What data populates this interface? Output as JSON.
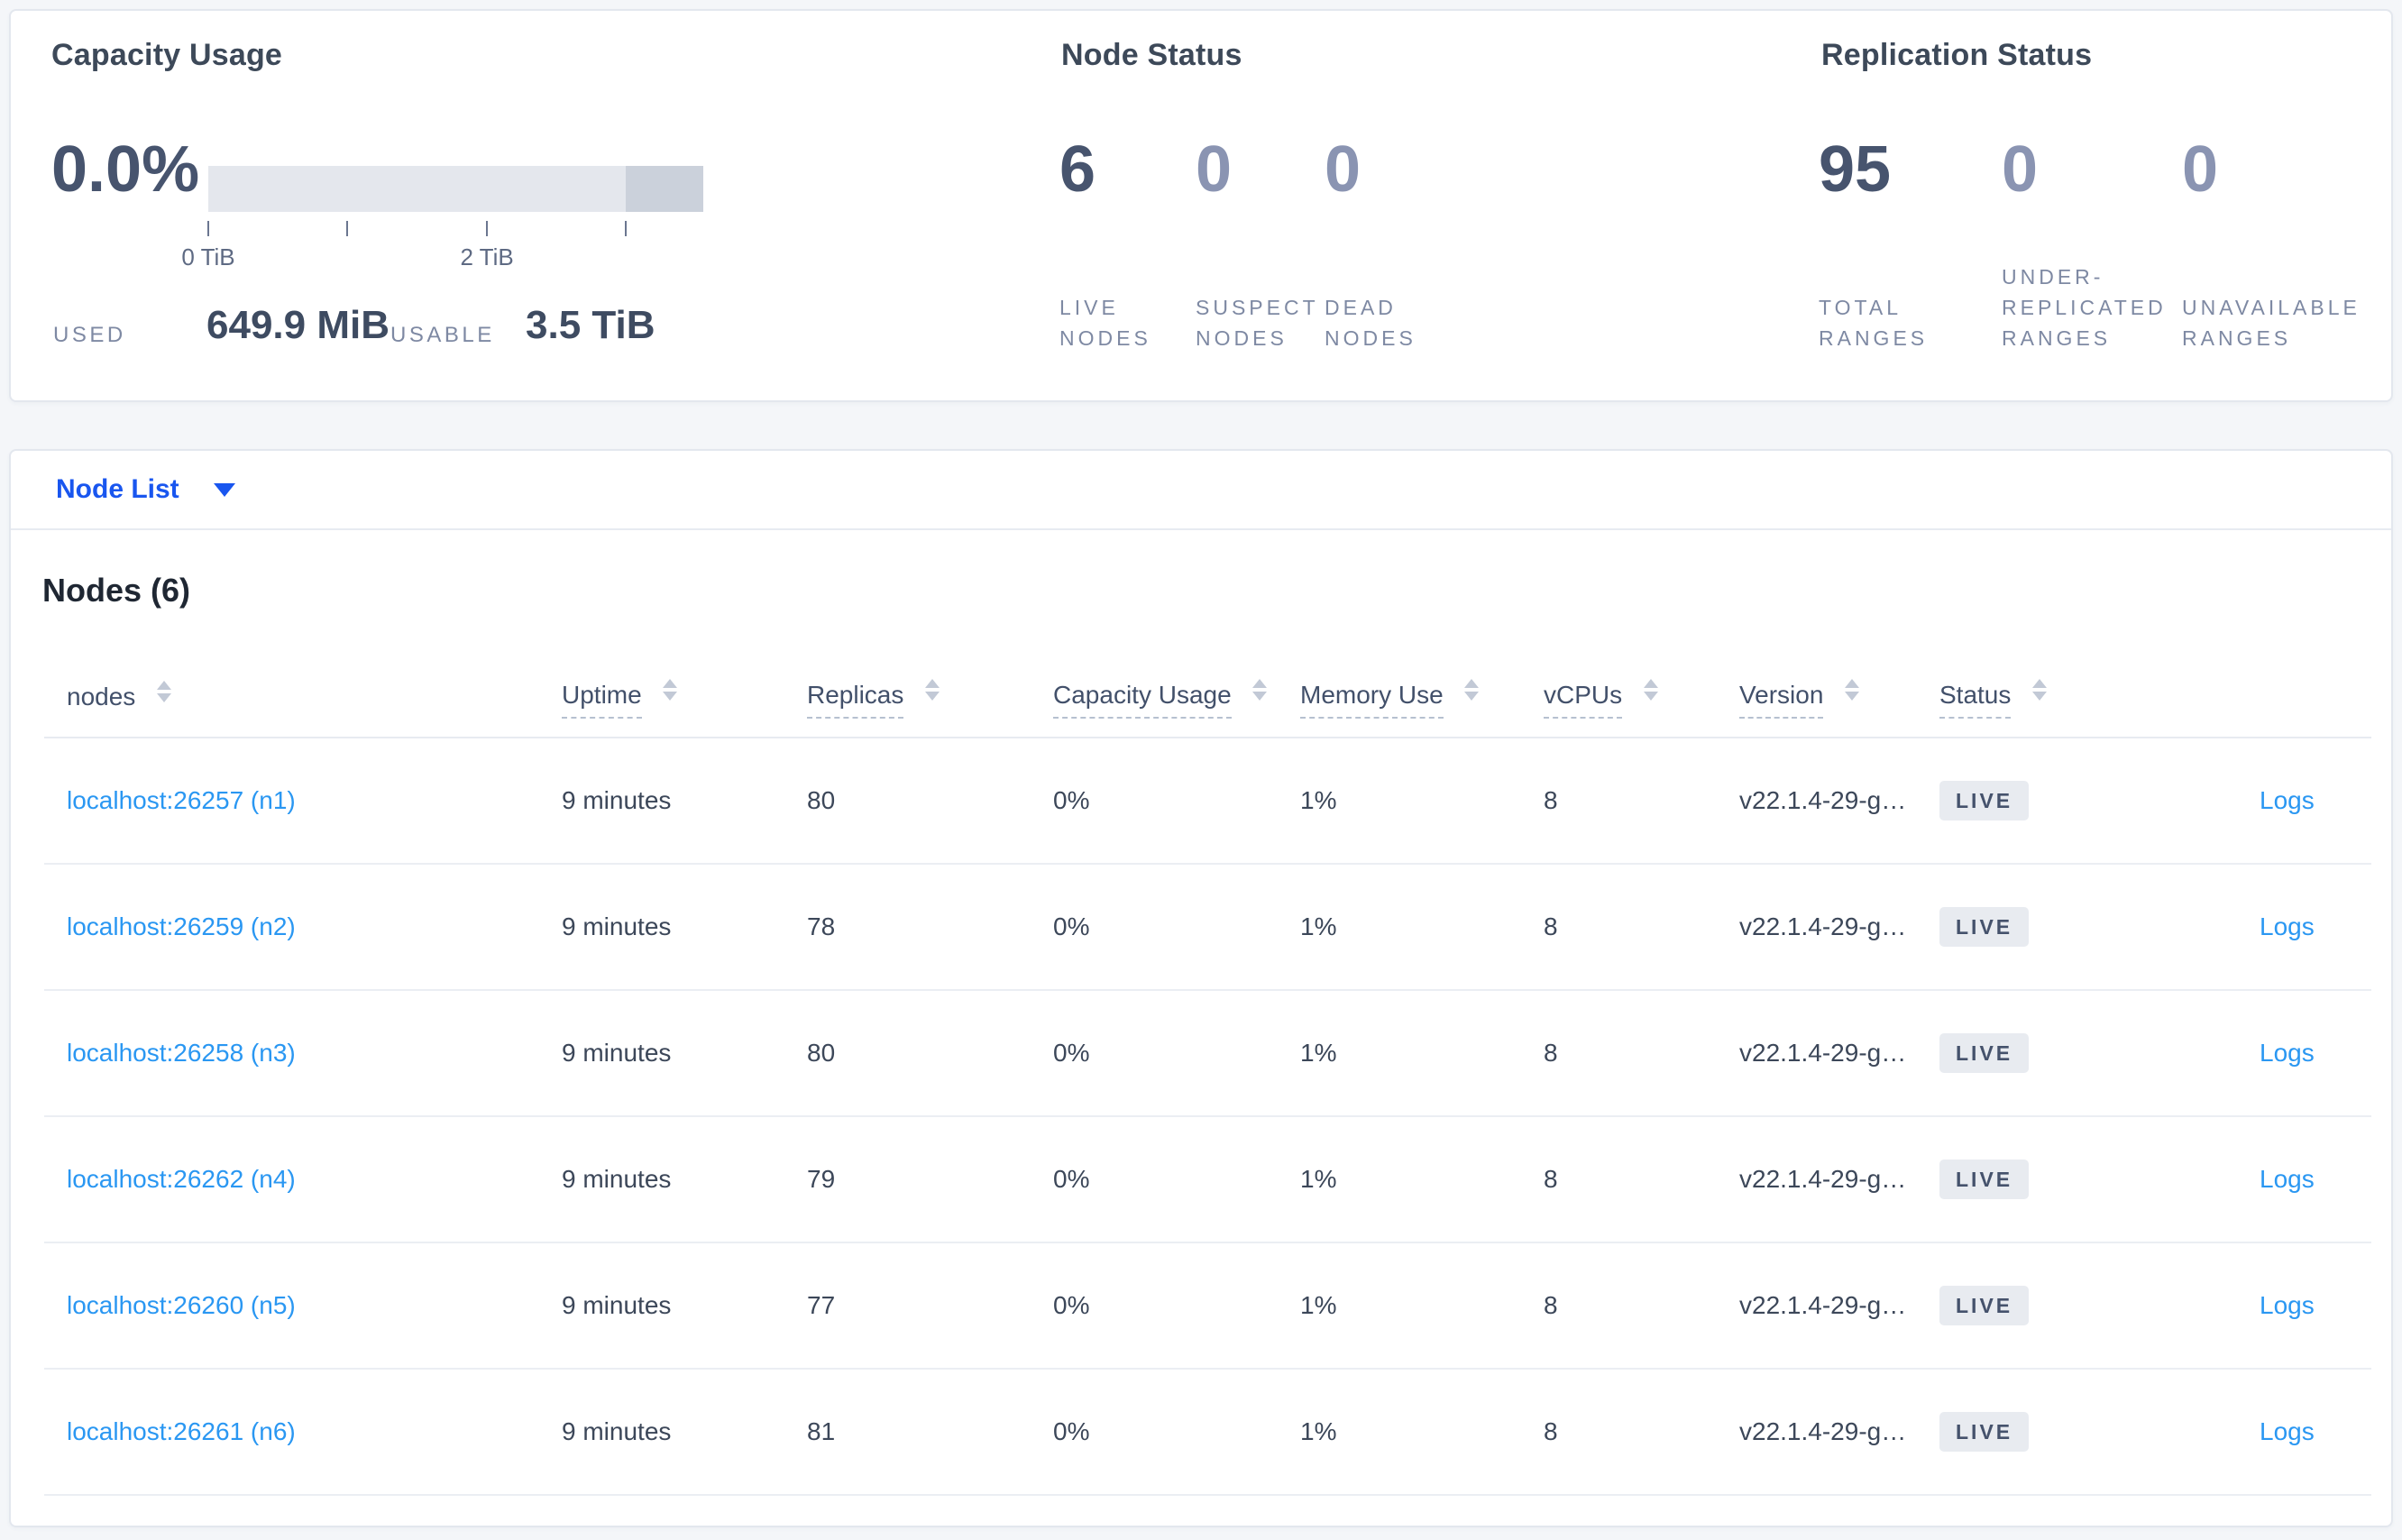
{
  "colors": {
    "page_background": "#f4f6f9",
    "card_border": "#e3e7ee",
    "primary_link_blue": "#1956ef",
    "table_link_blue": "#2a97f2",
    "heading_dark": "#3d4959",
    "stat_number_dark": "#47546e",
    "stat_number_muted": "#8a94b2",
    "stat_label_gray": "#7e89a3",
    "badge_bg": "#e8ebf0",
    "badge_text": "#45526c",
    "bar_track": "#e4e7ed",
    "bar_tail": "#cbd1db"
  },
  "summary": {
    "capacity_usage": {
      "title": "Capacity Usage",
      "percent": "0.0%",
      "bar": {
        "tail_start_pct": 84.4,
        "tick_positions_pct": [
          0,
          28.1,
          56.3,
          84.4
        ]
      },
      "axis_tick_labels": [
        "0 TiB",
        "2 TiB"
      ],
      "used_label": "USED",
      "used_value": "649.9 MiB",
      "usable_label": "USABLE",
      "usable_value": "3.5 TiB"
    },
    "node_status": {
      "title": "Node Status",
      "stats": [
        {
          "value": "6",
          "label_lines": [
            "LIVE",
            "NODES"
          ]
        },
        {
          "value": "0",
          "label_lines": [
            "SUSPECT",
            "NODES"
          ]
        },
        {
          "value": "0",
          "label_lines": [
            "DEAD",
            "NODES"
          ]
        }
      ]
    },
    "replication_status": {
      "title": "Replication Status",
      "stats": [
        {
          "value": "95",
          "label_lines": [
            "TOTAL",
            "RANGES"
          ]
        },
        {
          "value": "0",
          "label_lines": [
            "UNDER-",
            "REPLICATED",
            "RANGES"
          ]
        },
        {
          "value": "0",
          "label_lines": [
            "UNAVAILABLE",
            "RANGES"
          ]
        }
      ]
    }
  },
  "view_selector": {
    "label": "Node List"
  },
  "nodes_table": {
    "title": "Nodes (6)",
    "columns": [
      {
        "label": "nodes",
        "has_tooltip": false
      },
      {
        "label": "Uptime",
        "has_tooltip": true
      },
      {
        "label": "Replicas",
        "has_tooltip": true
      },
      {
        "label": "Capacity Usage",
        "has_tooltip": true
      },
      {
        "label": "Memory Use",
        "has_tooltip": true
      },
      {
        "label": "vCPUs",
        "has_tooltip": true
      },
      {
        "label": "Version",
        "has_tooltip": true
      },
      {
        "label": "Status",
        "has_tooltip": true
      }
    ],
    "rows": [
      {
        "node": "localhost:26257 (n1)",
        "uptime": "9 minutes",
        "replicas": "80",
        "capacity": "0%",
        "memory": "1%",
        "vcpus": "8",
        "version": "v22.1.4-29-g…",
        "status": "LIVE",
        "logs": "Logs"
      },
      {
        "node": "localhost:26259 (n2)",
        "uptime": "9 minutes",
        "replicas": "78",
        "capacity": "0%",
        "memory": "1%",
        "vcpus": "8",
        "version": "v22.1.4-29-g…",
        "status": "LIVE",
        "logs": "Logs"
      },
      {
        "node": "localhost:26258 (n3)",
        "uptime": "9 minutes",
        "replicas": "80",
        "capacity": "0%",
        "memory": "1%",
        "vcpus": "8",
        "version": "v22.1.4-29-g…",
        "status": "LIVE",
        "logs": "Logs"
      },
      {
        "node": "localhost:26262 (n4)",
        "uptime": "9 minutes",
        "replicas": "79",
        "capacity": "0%",
        "memory": "1%",
        "vcpus": "8",
        "version": "v22.1.4-29-g…",
        "status": "LIVE",
        "logs": "Logs"
      },
      {
        "node": "localhost:26260 (n5)",
        "uptime": "9 minutes",
        "replicas": "77",
        "capacity": "0%",
        "memory": "1%",
        "vcpus": "8",
        "version": "v22.1.4-29-g…",
        "status": "LIVE",
        "logs": "Logs"
      },
      {
        "node": "localhost:26261 (n6)",
        "uptime": "9 minutes",
        "replicas": "81",
        "capacity": "0%",
        "memory": "1%",
        "vcpus": "8",
        "version": "v22.1.4-29-g…",
        "status": "LIVE",
        "logs": "Logs"
      }
    ]
  }
}
